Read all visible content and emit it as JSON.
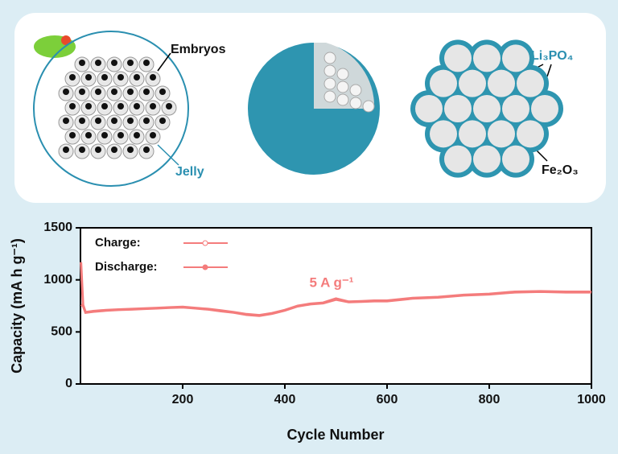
{
  "schematic": {
    "labels": [
      "Embryos",
      "Jelly",
      "Li₃PO₄",
      "Fe₂O₃"
    ]
  },
  "chart_data": {
    "type": "line",
    "annotation": "5 A g⁻¹",
    "x_label": "Cycle Number",
    "y_label": "Capacity (mA h g⁻¹)",
    "x": [
      1,
      5,
      10,
      25,
      50,
      75,
      100,
      125,
      150,
      175,
      200,
      225,
      250,
      275,
      300,
      325,
      350,
      375,
      400,
      425,
      450,
      475,
      500,
      525,
      550,
      575,
      600,
      650,
      700,
      750,
      800,
      850,
      900,
      950,
      1000
    ],
    "series": [
      {
        "name": "Charge:",
        "color": "#f47c7c",
        "marker": "open",
        "values": [
          760,
          750,
          685,
          695,
          705,
          712,
          716,
          722,
          727,
          732,
          736,
          727,
          716,
          700,
          686,
          665,
          655,
          676,
          706,
          746,
          766,
          776,
          810,
          786,
          791,
          796,
          796,
          821,
          831,
          851,
          861,
          881,
          886,
          881,
          881
        ]
      },
      {
        "name": "Discharge:",
        "color": "#f47c7c",
        "marker": "filled",
        "values": [
          1170,
          760,
          690,
          700,
          710,
          715,
          720,
          725,
          730,
          735,
          740,
          730,
          720,
          705,
          690,
          670,
          660,
          680,
          710,
          750,
          770,
          780,
          820,
          790,
          795,
          800,
          800,
          825,
          835,
          855,
          865,
          885,
          890,
          885,
          885
        ]
      }
    ],
    "xlim": [
      0,
      1000
    ],
    "xticks": [
      200,
      400,
      600,
      800,
      1000
    ],
    "ylim": [
      0,
      1500
    ],
    "yticks": [
      0,
      500,
      1000,
      1500
    ],
    "legend": "upper left"
  }
}
